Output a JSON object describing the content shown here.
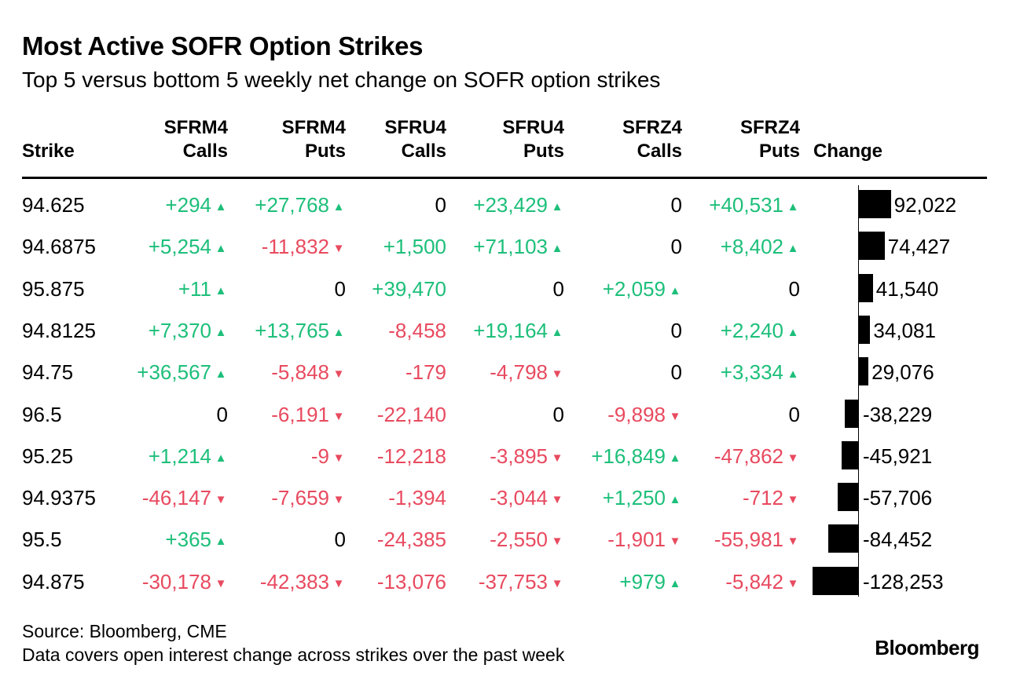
{
  "title": "Most Active SOFR Option Strikes",
  "subtitle": "Top 5 versus bottom 5 weekly net change on SOFR option strikes",
  "columns": {
    "strike": "Strike",
    "sfrm4_calls": [
      "SFRM4",
      "Calls"
    ],
    "sfrm4_puts": [
      "SFRM4",
      "Puts"
    ],
    "sfru4_calls": [
      "SFRU4",
      "Calls"
    ],
    "sfru4_puts": [
      "SFRU4",
      "Puts"
    ],
    "sfrz4_calls": [
      "SFRZ4",
      "Calls"
    ],
    "sfrz4_puts": [
      "SFRZ4",
      "Puts"
    ],
    "change": "Change"
  },
  "colors": {
    "positive": "#1dbf7a",
    "negative": "#e84a5f",
    "bar": "#000000"
  },
  "chart_data": {
    "type": "table",
    "title": "Most Active SOFR Option Strikes",
    "series_names": [
      "SFRM4 Calls",
      "SFRM4 Puts",
      "SFRU4 Calls",
      "SFRU4 Puts",
      "SFRZ4 Calls",
      "SFRZ4 Puts"
    ],
    "rows": [
      {
        "strike": "94.625",
        "cells": [
          {
            "v": "+294",
            "a": "up"
          },
          {
            "v": "+27,768",
            "a": "up"
          },
          {
            "v": "0",
            "a": ""
          },
          {
            "v": "+23,429",
            "a": "up"
          },
          {
            "v": "0",
            "a": ""
          },
          {
            "v": "+40,531",
            "a": "up"
          }
        ],
        "change": 92022,
        "change_label": "92,022"
      },
      {
        "strike": "94.6875",
        "cells": [
          {
            "v": "+5,254",
            "a": "up"
          },
          {
            "v": "-11,832",
            "a": "down"
          },
          {
            "v": "+1,500",
            "a": ""
          },
          {
            "v": "+71,103",
            "a": "up"
          },
          {
            "v": "0",
            "a": ""
          },
          {
            "v": "+8,402",
            "a": "up"
          }
        ],
        "change": 74427,
        "change_label": "74,427"
      },
      {
        "strike": "95.875",
        "cells": [
          {
            "v": "+11",
            "a": "up"
          },
          {
            "v": "0",
            "a": ""
          },
          {
            "v": "+39,470",
            "a": ""
          },
          {
            "v": "0",
            "a": ""
          },
          {
            "v": "+2,059",
            "a": "up"
          },
          {
            "v": "0",
            "a": ""
          }
        ],
        "change": 41540,
        "change_label": "41,540"
      },
      {
        "strike": "94.8125",
        "cells": [
          {
            "v": "+7,370",
            "a": "up"
          },
          {
            "v": "+13,765",
            "a": "up"
          },
          {
            "v": "-8,458",
            "a": ""
          },
          {
            "v": "+19,164",
            "a": "up"
          },
          {
            "v": "0",
            "a": ""
          },
          {
            "v": "+2,240",
            "a": "up"
          }
        ],
        "change": 34081,
        "change_label": "34,081"
      },
      {
        "strike": "94.75",
        "cells": [
          {
            "v": "+36,567",
            "a": "up"
          },
          {
            "v": "-5,848",
            "a": "down"
          },
          {
            "v": "-179",
            "a": ""
          },
          {
            "v": "-4,798",
            "a": "down"
          },
          {
            "v": "0",
            "a": ""
          },
          {
            "v": "+3,334",
            "a": "up"
          }
        ],
        "change": 29076,
        "change_label": "29,076"
      },
      {
        "strike": "96.5",
        "cells": [
          {
            "v": "0",
            "a": ""
          },
          {
            "v": "-6,191",
            "a": "down"
          },
          {
            "v": "-22,140",
            "a": ""
          },
          {
            "v": "0",
            "a": ""
          },
          {
            "v": "-9,898",
            "a": "down"
          },
          {
            "v": "0",
            "a": ""
          }
        ],
        "change": -38229,
        "change_label": "-38,229"
      },
      {
        "strike": "95.25",
        "cells": [
          {
            "v": "+1,214",
            "a": "up"
          },
          {
            "v": "-9",
            "a": "down"
          },
          {
            "v": "-12,218",
            "a": ""
          },
          {
            "v": "-3,895",
            "a": "down"
          },
          {
            "v": "+16,849",
            "a": "up"
          },
          {
            "v": "-47,862",
            "a": "down"
          }
        ],
        "change": -45921,
        "change_label": "-45,921"
      },
      {
        "strike": "94.9375",
        "cells": [
          {
            "v": "-46,147",
            "a": "down"
          },
          {
            "v": "-7,659",
            "a": "down"
          },
          {
            "v": "-1,394",
            "a": ""
          },
          {
            "v": "-3,044",
            "a": "down"
          },
          {
            "v": "+1,250",
            "a": "up"
          },
          {
            "v": "-712",
            "a": "down"
          }
        ],
        "change": -57706,
        "change_label": "-57,706"
      },
      {
        "strike": "95.5",
        "cells": [
          {
            "v": "+365",
            "a": "up"
          },
          {
            "v": "0",
            "a": ""
          },
          {
            "v": "-24,385",
            "a": ""
          },
          {
            "v": "-2,550",
            "a": "down"
          },
          {
            "v": "-1,901",
            "a": "down"
          },
          {
            "v": "-55,981",
            "a": "down"
          }
        ],
        "change": -84452,
        "change_label": "-84,452"
      },
      {
        "strike": "94.875",
        "cells": [
          {
            "v": "-30,178",
            "a": "down"
          },
          {
            "v": "-42,383",
            "a": "down"
          },
          {
            "v": "-13,076",
            "a": ""
          },
          {
            "v": "-37,753",
            "a": "down"
          },
          {
            "v": "+979",
            "a": "up"
          },
          {
            "v": "-5,842",
            "a": "down"
          }
        ],
        "change": -128253,
        "change_label": "-128,253"
      }
    ]
  },
  "footer": {
    "source": "Source: Bloomberg, CME",
    "note": "Data covers open interest change across strikes over the past week",
    "logo": "Bloomberg"
  }
}
